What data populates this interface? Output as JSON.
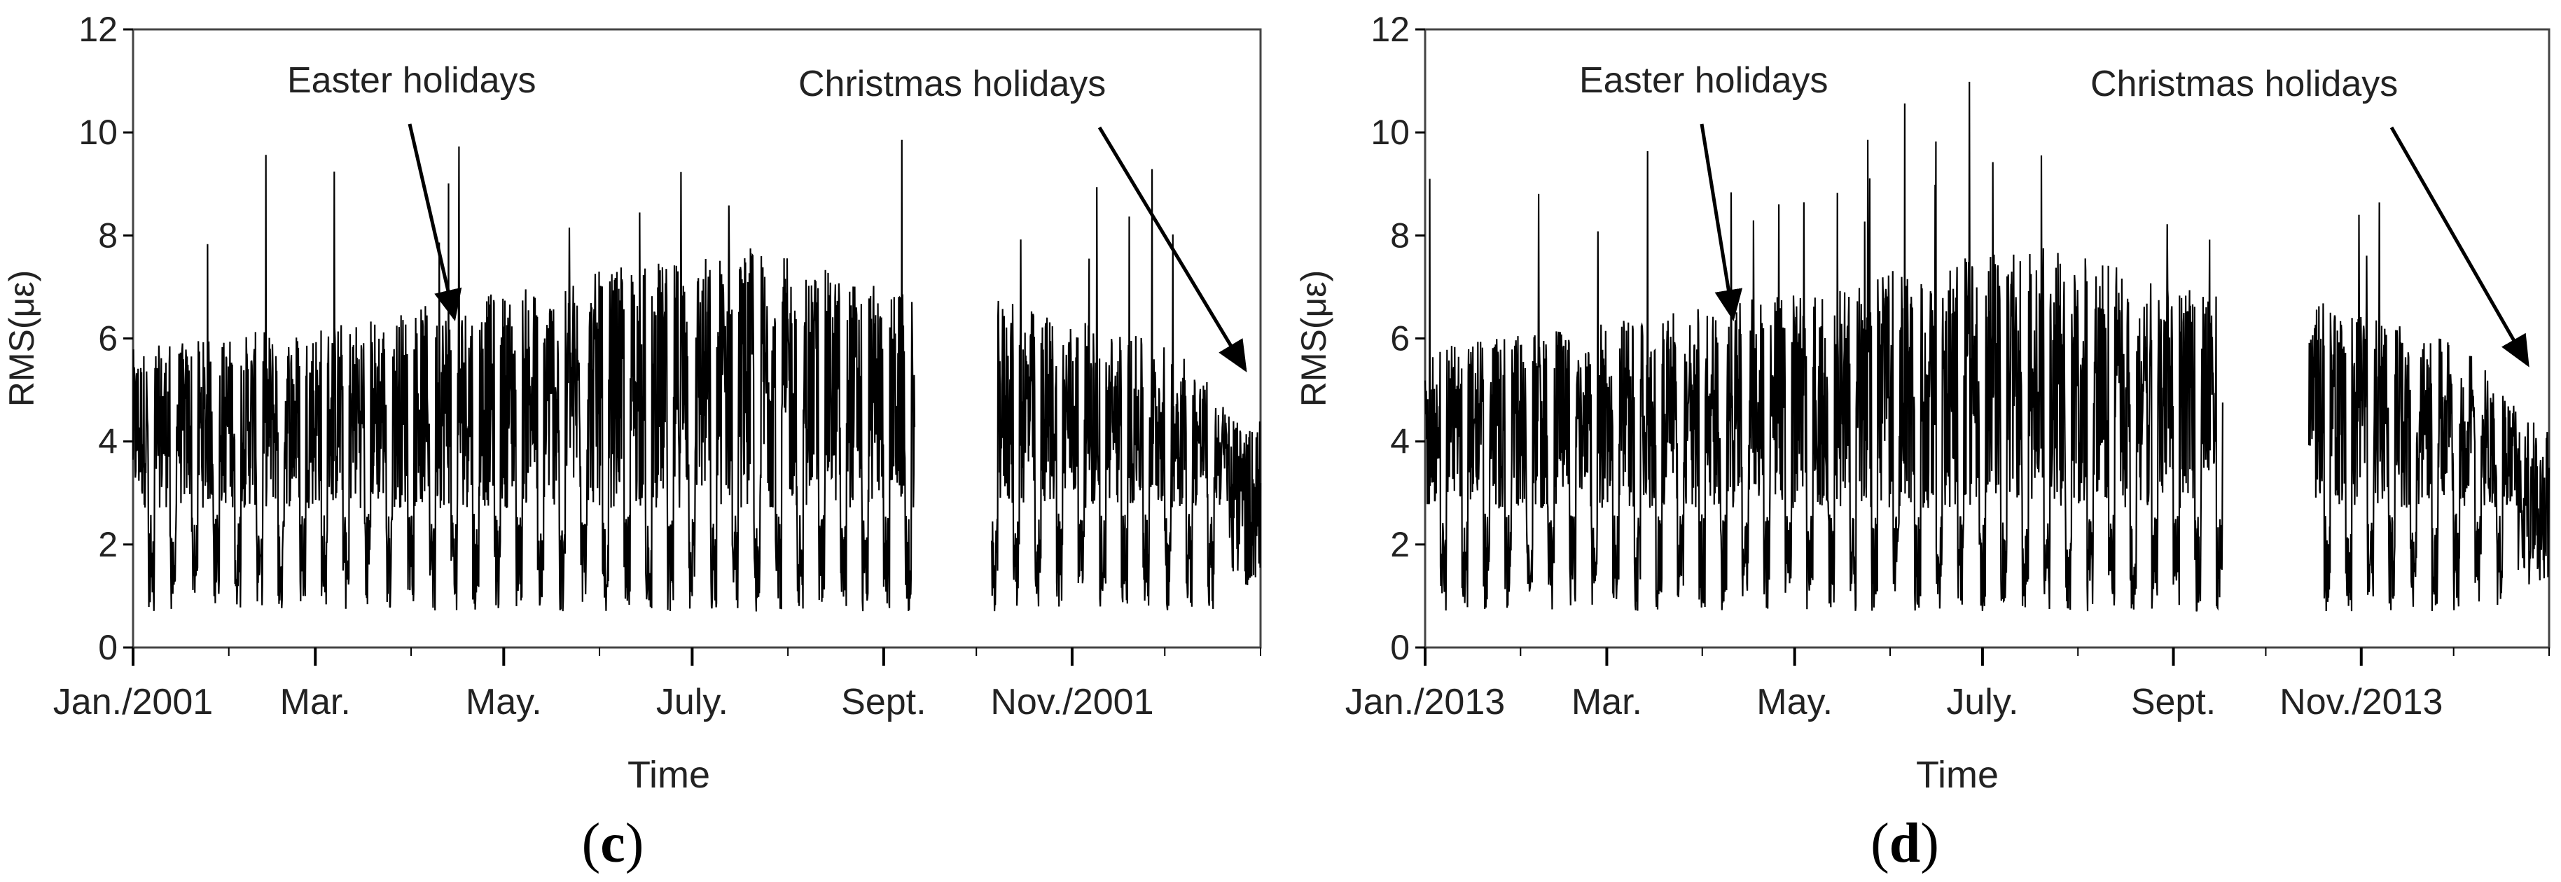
{
  "chart_data": [
    {
      "panel": "c",
      "panel_label": "c",
      "type": "line",
      "title": "",
      "xlabel": "Time",
      "ylabel": "RMS(με)",
      "ylim": [
        0,
        12
      ],
      "yticks": [
        0,
        2,
        4,
        6,
        8,
        10,
        12
      ],
      "x_tick_labels": [
        "Jan./2001",
        "Mar.",
        "May.",
        "July.",
        "Sept.",
        "Nov./2001"
      ],
      "x_tick_day": [
        0,
        59,
        120,
        181,
        243,
        304
      ],
      "xlim_days": [
        0,
        365
      ],
      "gap_days": [
        253,
        278
      ],
      "baseline_rms": 3.0,
      "seasonal_envelope": [
        [
          0,
          5.5
        ],
        [
          60,
          6.0
        ],
        [
          110,
          6.5
        ],
        [
          150,
          7.0
        ],
        [
          200,
          7.5
        ],
        [
          253,
          6.5
        ],
        [
          278,
          6.5
        ],
        [
          340,
          5.5
        ],
        [
          365,
          3.5
        ]
      ],
      "annotations": [
        {
          "text": "Easter holidays",
          "arrow_to_day": 104,
          "arrow_to_value": 6.4
        },
        {
          "text": "Christmas holidays",
          "arrow_to_day": 360,
          "arrow_to_value": 5.4
        }
      ]
    },
    {
      "panel": "d",
      "panel_label": "d",
      "type": "line",
      "title": "",
      "xlabel": "Time",
      "ylabel": "RMS(με)",
      "ylim": [
        0,
        12
      ],
      "yticks": [
        0,
        2,
        4,
        6,
        8,
        10,
        12
      ],
      "x_tick_labels": [
        "Jan./2013",
        "Mar.",
        "May.",
        "July.",
        "Sept.",
        "Nov./2013"
      ],
      "x_tick_day": [
        0,
        59,
        120,
        181,
        243,
        304
      ],
      "xlim_days": [
        0,
        365
      ],
      "gap_days": [
        259,
        287
      ],
      "baseline_rms": 3.0,
      "seasonal_envelope": [
        [
          0,
          5.5
        ],
        [
          60,
          6.0
        ],
        [
          110,
          6.5
        ],
        [
          150,
          7.0
        ],
        [
          200,
          7.5
        ],
        [
          259,
          6.5
        ],
        [
          287,
          6.5
        ],
        [
          340,
          5.5
        ],
        [
          365,
          3.5
        ]
      ],
      "annotations": [
        {
          "text": "Easter holidays",
          "arrow_to_day": 100,
          "arrow_to_value": 6.4
        },
        {
          "text": "Christmas holidays",
          "arrow_to_day": 358,
          "arrow_to_value": 5.5
        }
      ]
    }
  ]
}
